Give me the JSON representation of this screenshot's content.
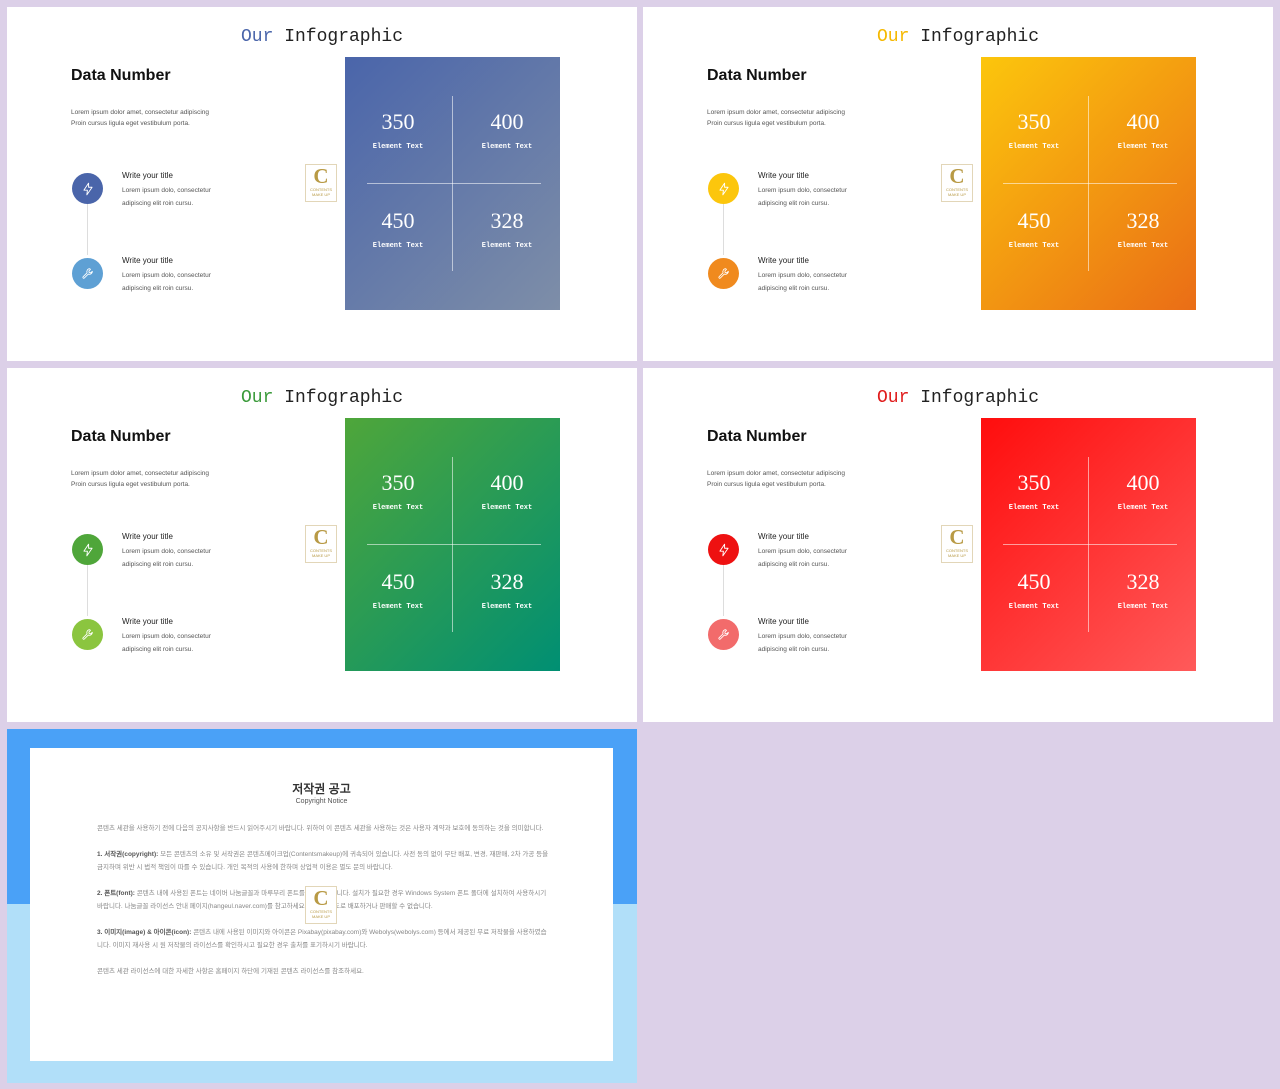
{
  "slides": [
    {
      "head_accent": "Our",
      "head_rest": " Infographic",
      "accent_color": "#4a65aa",
      "heading": "Data Number",
      "intro": [
        "Lorem ipsum  dolor amet, consectetur adipiscing",
        "Proin cursus ligula eget vestibulum  porta."
      ],
      "items": [
        {
          "icon": "lightning-icon",
          "color": "#4a65aa",
          "title": "Write your title",
          "desc": [
            "Lorem ipsum dolo, consectetur",
            "adipiscing elit roin cursu."
          ]
        },
        {
          "icon": "wrench-icon",
          "color": "#5ea0d4",
          "title": "Write your title",
          "desc": [
            "Lorem ipsum dolo, consectetur",
            "adipiscing elit roin cursu."
          ]
        }
      ],
      "stats": [
        {
          "n": "350",
          "l": "Element Text"
        },
        {
          "n": "400",
          "l": "Element Text"
        },
        {
          "n": "450",
          "l": "Element Text"
        },
        {
          "n": "328",
          "l": "Element Text"
        }
      ]
    },
    {
      "head_accent": "Our",
      "head_rest": " Infographic",
      "accent_color": "#f5b800",
      "heading": "Data Number",
      "intro": [
        "Lorem ipsum  dolor amet, consectetur adipiscing",
        "Proin cursus ligula eget vestibulum  porta."
      ],
      "items": [
        {
          "icon": "lightning-icon",
          "color": "#fcc60c",
          "title": "Write your title",
          "desc": [
            "Lorem ipsum dolo, consectetur",
            "adipiscing elit roin cursu."
          ]
        },
        {
          "icon": "wrench-icon",
          "color": "#f08a1e",
          "title": "Write your title",
          "desc": [
            "Lorem ipsum dolo, consectetur",
            "adipiscing elit roin cursu."
          ]
        }
      ],
      "stats": [
        {
          "n": "350",
          "l": "Element Text"
        },
        {
          "n": "400",
          "l": "Element Text"
        },
        {
          "n": "450",
          "l": "Element Text"
        },
        {
          "n": "328",
          "l": "Element Text"
        }
      ]
    },
    {
      "head_accent": "Our",
      "head_rest": " Infographic",
      "accent_color": "#3a9a3a",
      "heading": "Data Number",
      "intro": [
        "Lorem ipsum  dolor amet, consectetur adipiscing",
        "Proin cursus ligula eget vestibulum  porta."
      ],
      "items": [
        {
          "icon": "lightning-icon",
          "color": "#4fa63a",
          "title": "Write your title",
          "desc": [
            "Lorem ipsum dolo, consectetur",
            "adipiscing elit roin cursu."
          ]
        },
        {
          "icon": "wrench-icon",
          "color": "#8bc53f",
          "title": "Write your title",
          "desc": [
            "Lorem ipsum dolo, consectetur",
            "adipiscing elit roin cursu."
          ]
        }
      ],
      "stats": [
        {
          "n": "350",
          "l": "Element Text"
        },
        {
          "n": "400",
          "l": "Element Text"
        },
        {
          "n": "450",
          "l": "Element Text"
        },
        {
          "n": "328",
          "l": "Element Text"
        }
      ]
    },
    {
      "head_accent": "Our",
      "head_rest": " Infographic",
      "accent_color": "#e01b1b",
      "heading": "Data Number",
      "intro": [
        "Lorem ipsum  dolor amet, consectetur adipiscing",
        "Proin cursus ligula eget vestibulum  porta."
      ],
      "items": [
        {
          "icon": "lightning-icon",
          "color": "#ee1111",
          "title": "Write your title",
          "desc": [
            "Lorem ipsum dolo, consectetur",
            "adipiscing elit roin cursu."
          ]
        },
        {
          "icon": "wrench-icon",
          "color": "#f26b6b",
          "title": "Write your title",
          "desc": [
            "Lorem ipsum dolo, consectetur",
            "adipiscing elit roin cursu."
          ]
        }
      ],
      "stats": [
        {
          "n": "350",
          "l": "Element Text"
        },
        {
          "n": "400",
          "l": "Element Text"
        },
        {
          "n": "450",
          "l": "Element Text"
        },
        {
          "n": "328",
          "l": "Element Text"
        }
      ]
    }
  ],
  "logo": {
    "letter": "C",
    "line1": "CONTENTS",
    "line2": "MAKE UP"
  },
  "copyright": {
    "title": "저작권 공고",
    "subtitle": "Copyright Notice",
    "intro": "콘텐츠 세관을 사용하기 전에 다음의 공지사항을 반드시 읽어주시기 바랍니다. 위하여 이 콘텐츠 세관을 사용하는 것은 사용자 계약과 보호에 동의하는 것을 의미합니다.",
    "sections": [
      {
        "title": "1. 서작권(copyright):",
        "body": "모든 콘텐츠의 소유 및 서작권은 콘텐츠메이크업(Contentsmakeup)에 귀속되어 있습니다. 사전 동의 없이 무단 배포, 변경, 재판매, 2차 가공 등을 금지하며 위반 시 법적 책임이 따를 수 있습니다. 개인 목적의 사용에 한하며 상업적 이용은 별도 문의 바랍니다."
      },
      {
        "title": "2. 폰트(font):",
        "body": "콘텐츠 내에 사용된 폰트는 네이버 나눔글꼴과 마루부리 폰트를 사용하였습니다. 설치가 필요한 경우 Windows System 폰트 폴더에 설치하여 사용하시기 바랍니다. 나눔글꼴 라이선스 안내 페이지(hangeul.naver.com)를 참고하세요. 폰트를 별도로 배포하거나 판매할 수 없습니다."
      },
      {
        "title": "3. 이미지(image) & 아이콘(icon):",
        "body": "콘텐츠 내에 사용된 이미지와 아이콘은 Pixabay(pixabay.com)와 Webolys(webolys.com) 등에서 제공된 무료 저작물을 사용하였습니다. 이미지 재사용 시 원 저작물의 라이선스를 확인하시고 필요한 경우 출처를 표기하시기 바랍니다."
      }
    ],
    "footer": "콘텐츠 세관 라이선스에 대한 자세한 사항은 홈페이지 하단에 기재된 콘텐츠 라이선스를 참조하세요."
  }
}
